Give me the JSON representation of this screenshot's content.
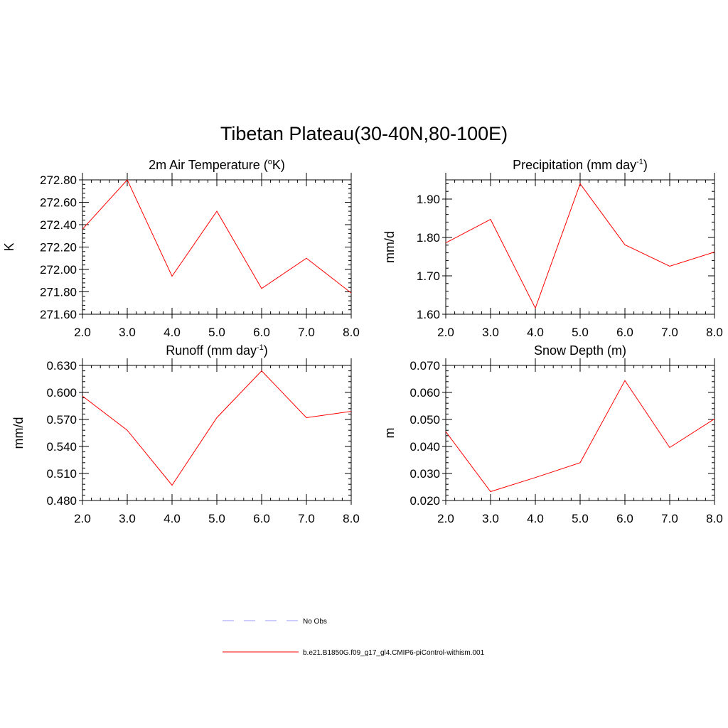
{
  "figure": {
    "title": "Tibetan Plateau(30-40N,80-100E)"
  },
  "chart_data": [
    {
      "type": "line",
      "title": "2m Air Temperature (",
      "title_sup": "o",
      "title_tail": "K)",
      "xlabel": "",
      "ylabel": "K",
      "xlim": [
        2,
        8
      ],
      "ylim": [
        271.6,
        272.8
      ],
      "xticks": [
        2,
        3,
        4,
        5,
        6,
        7,
        8
      ],
      "xtick_labels": [
        "2.0",
        "3.0",
        "4.0",
        "5.0",
        "6.0",
        "7.0",
        "8.0"
      ],
      "yticks": [
        271.6,
        271.8,
        272.0,
        272.2,
        272.4,
        272.6,
        272.8
      ],
      "ytick_labels": [
        "271.60",
        "271.80",
        "272.00",
        "272.20",
        "272.40",
        "272.60",
        "272.80"
      ],
      "grid": false,
      "series": [
        {
          "name": "b.e21.B1850G.f09_g17_gl4.CMIP6-piControl-withism.001",
          "color": "#ff0000",
          "x": [
            2,
            3,
            4,
            5,
            6,
            7,
            8
          ],
          "y": [
            272.36,
            272.8,
            271.94,
            272.52,
            271.83,
            272.1,
            271.79
          ]
        }
      ]
    },
    {
      "type": "line",
      "title": "Precipitation (mm day",
      "title_sup": "-1",
      "title_tail": ")",
      "xlabel": "",
      "ylabel": "mm/d",
      "xlim": [
        2,
        8
      ],
      "ylim": [
        1.6,
        1.95
      ],
      "xticks": [
        2,
        3,
        4,
        5,
        6,
        7,
        8
      ],
      "xtick_labels": [
        "2.0",
        "3.0",
        "4.0",
        "5.0",
        "6.0",
        "7.0",
        "8.0"
      ],
      "yticks": [
        1.6,
        1.7,
        1.8,
        1.9
      ],
      "ytick_labels": [
        "1.60",
        "1.70",
        "1.80",
        "1.90"
      ],
      "grid": false,
      "series": [
        {
          "name": "b.e21.B1850G.f09_g17_gl4.CMIP6-piControl-withism.001",
          "color": "#ff0000",
          "x": [
            2,
            3,
            4,
            5,
            6,
            7,
            8
          ],
          "y": [
            1.786,
            1.847,
            1.616,
            1.94,
            1.781,
            1.725,
            1.762
          ]
        }
      ]
    },
    {
      "type": "line",
      "title": "Runoff (mm day",
      "title_sup": "-1",
      "title_tail": ")",
      "xlabel": "",
      "ylabel": "mm/d",
      "xlim": [
        2,
        8
      ],
      "ylim": [
        0.48,
        0.63
      ],
      "xticks": [
        2,
        3,
        4,
        5,
        6,
        7,
        8
      ],
      "xtick_labels": [
        "2.0",
        "3.0",
        "4.0",
        "5.0",
        "6.0",
        "7.0",
        "8.0"
      ],
      "yticks": [
        0.48,
        0.51,
        0.54,
        0.57,
        0.6,
        0.63
      ],
      "ytick_labels": [
        "0.480",
        "0.510",
        "0.540",
        "0.570",
        "0.600",
        "0.630"
      ],
      "grid": false,
      "series": [
        {
          "name": "b.e21.B1850G.f09_g17_gl4.CMIP6-piControl-withism.001",
          "color": "#ff0000",
          "x": [
            2,
            3,
            4,
            5,
            6,
            7,
            8
          ],
          "y": [
            0.596,
            0.558,
            0.497,
            0.572,
            0.624,
            0.572,
            0.579
          ]
        }
      ]
    },
    {
      "type": "line",
      "title": "Snow Depth (m)",
      "title_sup": "",
      "title_tail": "",
      "xlabel": "",
      "ylabel": "m",
      "xlim": [
        2,
        8
      ],
      "ylim": [
        0.02,
        0.07
      ],
      "xticks": [
        2,
        3,
        4,
        5,
        6,
        7,
        8
      ],
      "xtick_labels": [
        "2.0",
        "3.0",
        "4.0",
        "5.0",
        "6.0",
        "7.0",
        "8.0"
      ],
      "yticks": [
        0.02,
        0.03,
        0.04,
        0.05,
        0.06,
        0.07
      ],
      "ytick_labels": [
        "0.020",
        "0.030",
        "0.040",
        "0.050",
        "0.060",
        "0.070"
      ],
      "grid": false,
      "series": [
        {
          "name": "b.e21.B1850G.f09_g17_gl4.CMIP6-piControl-withism.001",
          "color": "#ff0000",
          "x": [
            2,
            3,
            4,
            5,
            6,
            7,
            8
          ],
          "y": [
            0.0455,
            0.0233,
            0.0285,
            0.034,
            0.0644,
            0.0396,
            0.0502
          ]
        }
      ]
    }
  ],
  "legend": {
    "entries": [
      {
        "label": "No Obs",
        "color": "#9999ff",
        "style": "dashed"
      },
      {
        "label": "b.e21.B1850G.f09_g17_gl4.CMIP6-piControl-withism.001",
        "color": "#ff0000",
        "style": "solid"
      }
    ]
  }
}
